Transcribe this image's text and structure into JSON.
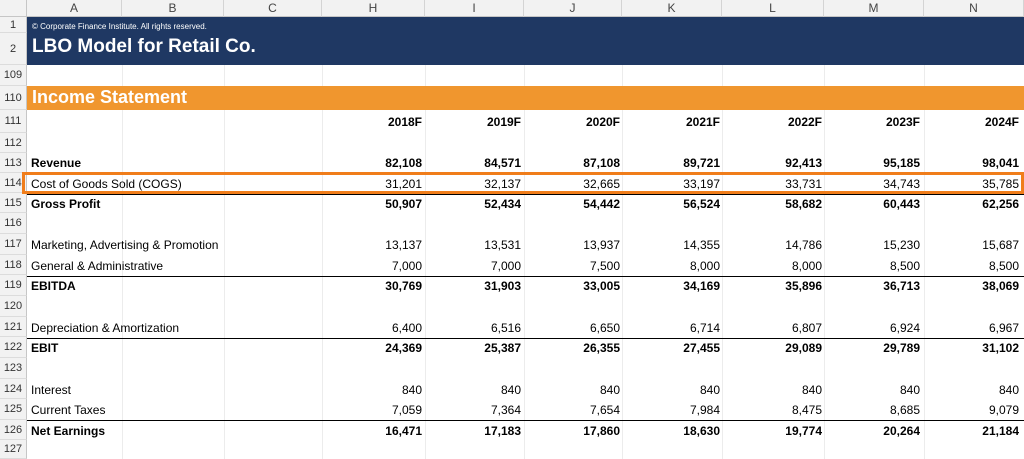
{
  "columns": [
    "A",
    "B",
    "C",
    "H",
    "I",
    "J",
    "K",
    "L",
    "M",
    "N"
  ],
  "banner": {
    "copyright": "© Corporate Finance Institute. All rights reserved.",
    "title": "LBO Model for Retail Co."
  },
  "section_title": "Income Statement",
  "years": [
    "2018F",
    "2019F",
    "2020F",
    "2021F",
    "2022F",
    "2023F",
    "2024F"
  ],
  "row_numbers": [
    "1",
    "2",
    "109",
    "110",
    "111",
    "112",
    "113",
    "114",
    "115",
    "116",
    "117",
    "118",
    "119",
    "120",
    "121",
    "122",
    "123",
    "124",
    "125",
    "126",
    "127"
  ],
  "rows": {
    "revenue": {
      "label": "Revenue",
      "values": [
        "82,108",
        "84,571",
        "87,108",
        "89,721",
        "92,413",
        "95,185",
        "98,041"
      ]
    },
    "cogs": {
      "label": "Cost of Goods Sold (COGS)",
      "values": [
        "31,201",
        "32,137",
        "32,665",
        "33,197",
        "33,731",
        "34,743",
        "35,785"
      ]
    },
    "gross_profit": {
      "label": "Gross Profit",
      "values": [
        "50,907",
        "52,434",
        "54,442",
        "56,524",
        "58,682",
        "60,443",
        "62,256"
      ]
    },
    "marketing": {
      "label": "Marketing, Advertising & Promotion",
      "values": [
        "13,137",
        "13,531",
        "13,937",
        "14,355",
        "14,786",
        "15,230",
        "15,687"
      ]
    },
    "ga": {
      "label": "General & Administrative",
      "values": [
        "7,000",
        "7,000",
        "7,500",
        "8,000",
        "8,000",
        "8,500",
        "8,500"
      ]
    },
    "ebitda": {
      "label": "EBITDA",
      "values": [
        "30,769",
        "31,903",
        "33,005",
        "34,169",
        "35,896",
        "36,713",
        "38,069"
      ]
    },
    "da": {
      "label": "Depreciation & Amortization",
      "values": [
        "6,400",
        "6,516",
        "6,650",
        "6,714",
        "6,807",
        "6,924",
        "6,967"
      ]
    },
    "ebit": {
      "label": "EBIT",
      "values": [
        "24,369",
        "25,387",
        "26,355",
        "27,455",
        "29,089",
        "29,789",
        "31,102"
      ]
    },
    "interest": {
      "label": "Interest",
      "values": [
        "840",
        "840",
        "840",
        "840",
        "840",
        "840",
        "840"
      ]
    },
    "taxes": {
      "label": "Current Taxes",
      "values": [
        "7,059",
        "7,364",
        "7,654",
        "7,984",
        "8,475",
        "8,685",
        "9,079"
      ]
    },
    "net_earnings": {
      "label": "Net Earnings",
      "values": [
        "16,471",
        "17,183",
        "17,860",
        "18,630",
        "19,774",
        "20,264",
        "21,184"
      ]
    }
  },
  "colors": {
    "banner": "#1f3863",
    "section": "#f0962e",
    "highlight": "#f07d1a"
  }
}
